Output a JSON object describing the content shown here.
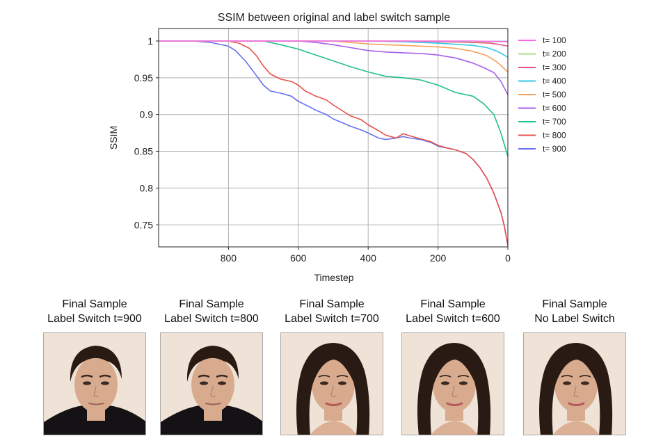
{
  "chart_data": {
    "type": "line",
    "title": "SSIM between original and label switch sample",
    "xlabel": "Timestep",
    "ylabel": "SSIM",
    "xlim": [
      1000,
      0
    ],
    "ylim": [
      0.72,
      1.017
    ],
    "x_inverted": true,
    "grid": true,
    "legend_position": "outside-right",
    "xticks": [
      800,
      600,
      400,
      200,
      0
    ],
    "xtick_labels": [
      "800",
      "600",
      "400",
      "200",
      "0"
    ],
    "yticks": [
      1,
      0.95,
      0.9,
      0.85,
      0.8,
      0.75
    ],
    "ytick_labels": [
      "1",
      "0.95",
      "0.9",
      "0.85",
      "0.8",
      "0.75"
    ],
    "series": [
      {
        "name": "t= 100",
        "color": "#ff66ee",
        "x": [
          1000,
          100,
          0
        ],
        "y": [
          1.0,
          1.0,
          0.999
        ]
      },
      {
        "name": "t= 200",
        "color": "#aade80",
        "x": [
          1000,
          200,
          100,
          0
        ],
        "y": [
          1.0,
          1.0,
          0.999,
          0.999
        ]
      },
      {
        "name": "t= 300",
        "color": "#e05585",
        "x": [
          1000,
          300,
          200,
          100,
          50,
          20,
          0
        ],
        "y": [
          1.0,
          1.0,
          0.999,
          0.998,
          0.997,
          0.995,
          0.993
        ]
      },
      {
        "name": "t= 400",
        "color": "#30c8e8",
        "x": [
          1000,
          400,
          300,
          200,
          100,
          60,
          30,
          0
        ],
        "y": [
          1.0,
          1.0,
          0.999,
          0.997,
          0.994,
          0.991,
          0.986,
          0.978
        ]
      },
      {
        "name": "t= 500",
        "color": "#f5a25a",
        "x": [
          1000,
          500,
          450,
          400,
          300,
          200,
          150,
          100,
          60,
          30,
          0
        ],
        "y": [
          1.0,
          1.0,
          0.998,
          0.996,
          0.994,
          0.992,
          0.99,
          0.986,
          0.98,
          0.971,
          0.958
        ]
      },
      {
        "name": "t= 600",
        "color": "#a660e8",
        "x": [
          1000,
          600,
          550,
          500,
          450,
          400,
          350,
          300,
          250,
          200,
          150,
          100,
          70,
          40,
          20,
          0
        ],
        "y": [
          1.0,
          1.0,
          0.998,
          0.995,
          0.991,
          0.987,
          0.985,
          0.984,
          0.983,
          0.981,
          0.977,
          0.97,
          0.964,
          0.957,
          0.945,
          0.927
        ]
      },
      {
        "name": "t= 700",
        "color": "#22c08a",
        "x": [
          1000,
          700,
          650,
          600,
          550,
          500,
          450,
          400,
          350,
          300,
          250,
          200,
          150,
          100,
          70,
          40,
          20,
          0
        ],
        "y": [
          1.0,
          1.0,
          0.995,
          0.989,
          0.981,
          0.973,
          0.965,
          0.958,
          0.952,
          0.95,
          0.947,
          0.94,
          0.93,
          0.925,
          0.915,
          0.9,
          0.875,
          0.843
        ]
      },
      {
        "name": "t= 800",
        "color": "#e8504a",
        "x": [
          1000,
          800,
          770,
          740,
          720,
          700,
          680,
          650,
          620,
          600,
          580,
          550,
          520,
          500,
          470,
          450,
          420,
          400,
          370,
          350,
          320,
          300,
          280,
          250,
          220,
          200,
          170,
          150,
          120,
          100,
          80,
          60,
          40,
          20,
          10,
          0
        ],
        "y": [
          1.0,
          1.0,
          0.997,
          0.99,
          0.98,
          0.966,
          0.955,
          0.948,
          0.945,
          0.94,
          0.932,
          0.925,
          0.92,
          0.913,
          0.904,
          0.898,
          0.893,
          0.886,
          0.878,
          0.872,
          0.868,
          0.874,
          0.871,
          0.867,
          0.863,
          0.858,
          0.854,
          0.852,
          0.847,
          0.839,
          0.828,
          0.813,
          0.793,
          0.767,
          0.748,
          0.722
        ]
      },
      {
        "name": "t= 900",
        "color": "#6670f0",
        "x": [
          1000,
          900,
          850,
          800,
          780,
          750,
          720,
          700,
          680,
          650,
          620,
          600,
          570,
          550,
          520,
          500,
          470,
          450,
          420,
          400,
          370,
          350,
          320,
          300,
          280,
          250,
          220,
          200,
          170,
          150,
          120,
          100,
          80,
          60,
          40,
          20,
          10,
          0
        ],
        "y": [
          1.0,
          1.0,
          0.998,
          0.993,
          0.987,
          0.972,
          0.953,
          0.94,
          0.932,
          0.929,
          0.925,
          0.918,
          0.911,
          0.906,
          0.9,
          0.894,
          0.888,
          0.884,
          0.879,
          0.875,
          0.868,
          0.866,
          0.868,
          0.87,
          0.868,
          0.866,
          0.862,
          0.857,
          0.854,
          0.852,
          0.847,
          0.839,
          0.828,
          0.813,
          0.793,
          0.767,
          0.748,
          0.722
        ]
      }
    ]
  },
  "samples": [
    {
      "line1": "Final Sample",
      "line2": "Label Switch t=900",
      "kind": "male"
    },
    {
      "line1": "Final Sample",
      "line2": "Label Switch t=800",
      "kind": "male"
    },
    {
      "line1": "Final Sample",
      "line2": "Label Switch t=700",
      "kind": "female"
    },
    {
      "line1": "Final Sample",
      "line2": "Label Switch t=600",
      "kind": "female"
    },
    {
      "line1": "Final Sample",
      "line2": "No Label Switch",
      "kind": "female"
    }
  ],
  "colors": {
    "grid": "#b0b0b0",
    "axis": "#222222",
    "hair": "#2a1a14",
    "skin": "#d9ab8e",
    "photo_bg": "#efe2d6",
    "shirt": "#141214"
  }
}
